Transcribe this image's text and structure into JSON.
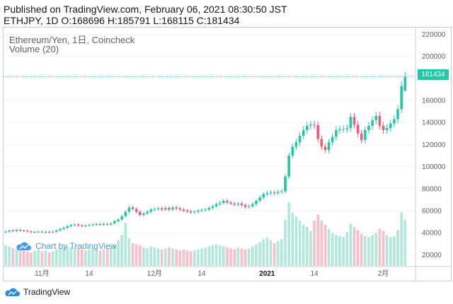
{
  "header": {
    "line1": "Published on TradingView.com, February 06, 2021 08:30:50 JST",
    "line2": "ETHJPY, 1D O:168696 H:185791 L:168115 C:181434"
  },
  "legend": {
    "symbol": "Ethereum/Yen, 1日, Coincheck",
    "volume": "Volume (20)"
  },
  "watermark": {
    "text": "Chart by TradingView",
    "icon": "tradingview-cloud-icon"
  },
  "footer": {
    "brand": "TradingView",
    "icon": "tradingview-logo-icon"
  },
  "price_tag": "181434",
  "colors": {
    "up": "#26c6a6",
    "down": "#ef5b7b",
    "up_volume": "#b2e8dc",
    "down_volume": "#f7c0cb",
    "last_price_line": "#26c6a6"
  },
  "chart_data": {
    "type": "candlestick",
    "symbol": "ETHJPY",
    "interval": "1D",
    "y_axis": {
      "ticks": [
        20000,
        40000,
        60000,
        80000,
        100000,
        120000,
        140000,
        160000,
        200000,
        220000
      ],
      "range": [
        10000,
        226000
      ],
      "position": "right"
    },
    "x_axis": {
      "labels": [
        "11月",
        "14",
        "12月",
        "14",
        "2021",
        "14",
        "2月"
      ],
      "bold_labels": [
        "2021"
      ]
    },
    "last_price": 181434,
    "last_ohlc": {
      "open": 168696,
      "high": 185791,
      "low": 168115,
      "close": 181434
    },
    "closes": [
      41000,
      42000,
      41500,
      42500,
      42000,
      41800,
      41200,
      40500,
      40800,
      41000,
      40500,
      40800,
      40500,
      41000,
      42000,
      43500,
      44500,
      46000,
      47000,
      47500,
      46500,
      46000,
      46500,
      47000,
      47500,
      47800,
      47500,
      48000,
      47500,
      48500,
      50500,
      52000,
      55000,
      59000,
      63000,
      61500,
      59000,
      56000,
      57500,
      59000,
      61000,
      61500,
      62000,
      61000,
      62500,
      61000,
      63000,
      62000,
      61000,
      60000,
      59500,
      58500,
      59000,
      60000,
      60500,
      61000,
      62500,
      64000,
      66000,
      67000,
      69000,
      67500,
      66500,
      65500,
      66500,
      65000,
      63500,
      64000,
      66000,
      69000,
      72000,
      75000,
      76000,
      76500,
      76000,
      77000,
      77500,
      91000,
      110000,
      118000,
      122000,
      128000,
      133000,
      137000,
      138000,
      137500,
      125000,
      118000,
      115000,
      122000,
      127000,
      133000,
      134000,
      134000,
      135000,
      145000,
      138000,
      130000,
      124000,
      133000,
      137000,
      142000,
      146000,
      137000,
      133000,
      135000,
      139000,
      143000,
      152000,
      173000,
      181434
    ],
    "volumes": [
      20000,
      19000,
      17000,
      16000,
      15000,
      16000,
      14000,
      13000,
      15000,
      16000,
      14000,
      15000,
      13000,
      14000,
      16000,
      17000,
      18000,
      19000,
      18000,
      17000,
      17000,
      16000,
      15000,
      16000,
      17000,
      16000,
      15000,
      16000,
      17000,
      18000,
      20000,
      25000,
      30000,
      42000,
      27000,
      22000,
      21000,
      20000,
      18000,
      17000,
      19000,
      18000,
      17000,
      16000,
      17000,
      18000,
      17000,
      16000,
      15000,
      16000,
      15000,
      14000,
      15000,
      16000,
      17000,
      18000,
      19000,
      20000,
      21000,
      20000,
      19000,
      18000,
      17000,
      16000,
      18000,
      17000,
      16000,
      17000,
      19000,
      21000,
      23000,
      26000,
      28000,
      25000,
      22000,
      24000,
      26000,
      45000,
      62000,
      52000,
      48000,
      44000,
      40000,
      38000,
      34000,
      44000,
      50000,
      44000,
      40000,
      36000,
      32000,
      30000,
      29000,
      28000,
      33000,
      41000,
      38000,
      35000,
      31000,
      29000,
      28000,
      30000,
      32000,
      36000,
      34000,
      30000,
      28000,
      29000,
      35000,
      52000,
      45000
    ]
  }
}
